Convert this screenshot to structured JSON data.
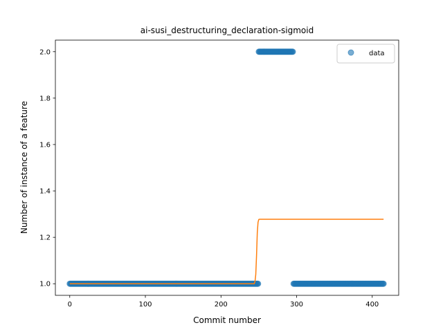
{
  "chart_data": {
    "type": "scatter",
    "title": "ai-susi_destructuring_declaration-sigmoid",
    "xlabel": "Commit number",
    "ylabel": "Number of instance of a feature",
    "xlim": [
      -19,
      435
    ],
    "ylim": [
      0.95,
      2.05
    ],
    "xticks": [
      0,
      100,
      200,
      300,
      400
    ],
    "yticks": [
      1.0,
      1.2,
      1.4,
      1.6,
      1.8,
      2.0
    ],
    "legend": {
      "placement": "top-right",
      "entries": [
        "data"
      ]
    },
    "series": [
      {
        "name": "data",
        "kind": "points",
        "color": "#1f77b4",
        "segments": [
          {
            "x_from": 0,
            "x_to": 249,
            "y": 1.0
          },
          {
            "x_from": 250,
            "x_to": 295,
            "y": 2.0
          },
          {
            "x_from": 296,
            "x_to": 415,
            "y": 1.0
          }
        ]
      },
      {
        "kind": "fit-line",
        "color": "#ff7f0e",
        "x": [
          0,
          244,
          245,
          246,
          247,
          248,
          249,
          250,
          251,
          415
        ],
        "y": [
          1.0,
          1.0,
          1.01,
          1.04,
          1.12,
          1.22,
          1.265,
          1.277,
          1.278,
          1.278
        ]
      }
    ]
  }
}
